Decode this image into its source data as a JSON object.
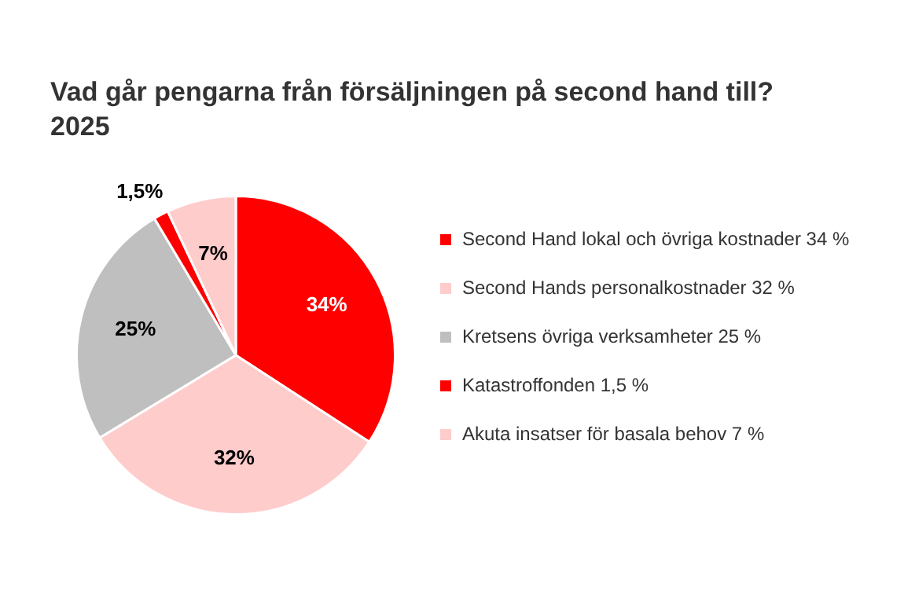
{
  "chart_data": {
    "type": "pie",
    "title": "Vad går pengarna från försäljningen på second hand till?\n2025",
    "categories": [
      "Second Hand lokal och övriga kostnader 34 %",
      "Second Hands personalkostnader 32 %",
      "Kretsens övriga verksamheter 25 %",
      "Katastroffonden 1,5 %",
      "Akuta insatser för basala behov 7 %"
    ],
    "values": [
      34,
      32,
      25,
      1.5,
      7
    ],
    "colors": [
      "#ff0000",
      "#ffcccc",
      "#bfbfbf",
      "#ff0000",
      "#ffcccc"
    ],
    "value_labels": [
      "34%",
      "32%",
      "25%",
      "1,5%",
      "7%"
    ],
    "legend": "right"
  }
}
